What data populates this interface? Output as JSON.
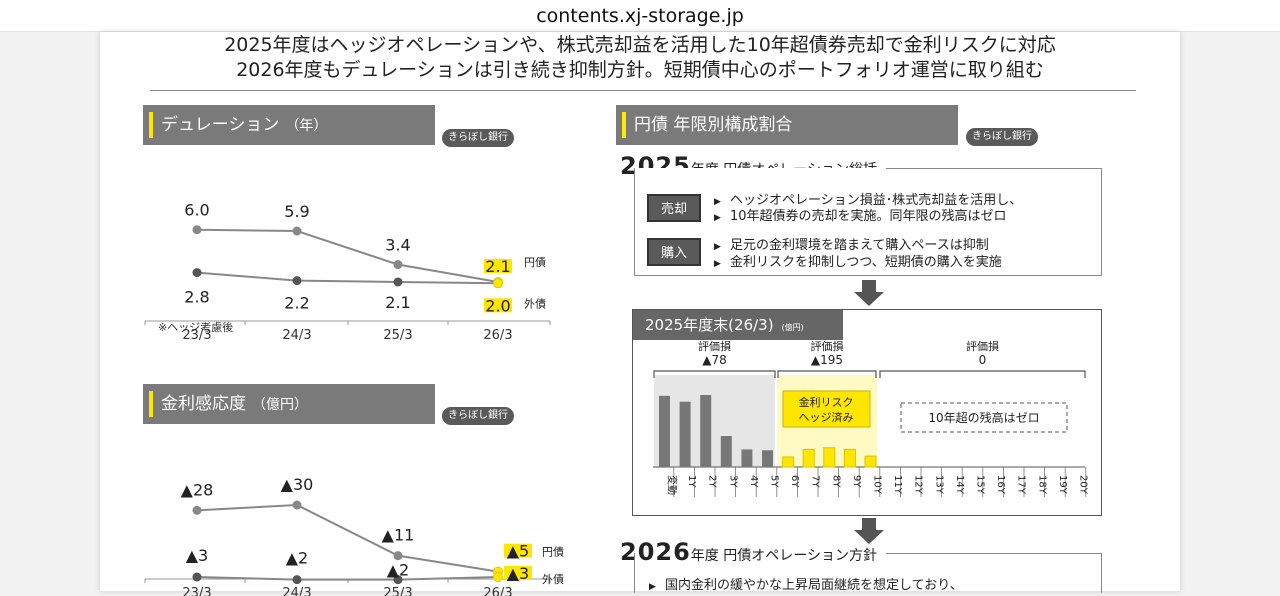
{
  "browser": {
    "url": "contents.xj-storage.jp"
  },
  "headline": {
    "line1": "2025年度はヘッジオペレーションや、株式売却益を活用した10年超債券売却で金利リスクに対応",
    "line2": "2026年度もデュレーションは引き続き抑制方針。短期債中心のポートフォリオ運営に取り組む"
  },
  "duration": {
    "title": "デュレーション",
    "unit": "（年）",
    "badge": "きらぼし銀行",
    "note": "※ヘッジ考慮後",
    "chart_data": {
      "type": "line",
      "categories": [
        "23/3",
        "24/3",
        "25/3",
        "26/3"
      ],
      "series": [
        {
          "name": "円債",
          "values": [
            6.0,
            5.9,
            3.4,
            2.1
          ],
          "labels": [
            "6.0",
            "5.9",
            "3.4",
            "2.1"
          ]
        },
        {
          "name": "外債",
          "values": [
            2.8,
            2.2,
            2.1,
            2.0
          ],
          "labels": [
            "2.8",
            "2.2",
            "2.1",
            "2.0"
          ]
        }
      ],
      "ylim": [
        1.5,
        6.5
      ]
    }
  },
  "sensitivity": {
    "title": "金利感応度",
    "unit": "（億円）",
    "badge": "きらぼし銀行",
    "chart_data": {
      "type": "line",
      "categories": [
        "23/3",
        "24/3",
        "25/3",
        "26/3"
      ],
      "series": [
        {
          "name": "円債",
          "values": [
            28,
            30,
            11,
            5
          ],
          "labels": [
            "▲28",
            "▲30",
            "▲11",
            "▲5"
          ]
        },
        {
          "name": "外債",
          "values": [
            3,
            2,
            2,
            3
          ],
          "labels": [
            "▲3",
            "▲2",
            "▲2",
            "▲3"
          ]
        }
      ],
      "ylim": [
        0,
        33
      ]
    }
  },
  "composition": {
    "title": "円債 年限別構成割合",
    "badge": "きらぼし銀行",
    "fy2025": {
      "year": "2025",
      "suffix": "年度 円債オペレーション総括",
      "sell_tag": "売却",
      "sell_lines": [
        "ヘッジオペレーション損益･株式売却益を活用し、",
        "10年超債券の売却を実施。同年限の残高はゼロ"
      ],
      "buy_tag": "購入",
      "buy_lines": [
        "足元の金利環境を踏まえて購入ペースは抑制",
        "金利リスクを抑制しつつ、短期債の購入を実施"
      ]
    },
    "end_box": {
      "title": "2025年度末(26/3)",
      "unit": "(億円)",
      "groups": [
        {
          "label": "評価損",
          "value": "▲78"
        },
        {
          "label": "評価損",
          "value": "▲195"
        },
        {
          "label": "評価損",
          "value": "0"
        }
      ],
      "hedge_label": [
        "金利リスク",
        "ヘッジ済み"
      ],
      "zero_label": "10年超の残高はゼロ",
      "colors": {
        "grey": "#777777",
        "yellow": "#ffe600",
        "yellow_bg": "#fff9c4",
        "grey_bg": "#e6e6e6"
      },
      "chart_data": {
        "type": "bar",
        "categories": [
          "変動",
          "1Y",
          "2Y",
          "3Y",
          "4Y",
          "5Y",
          "6Y",
          "7Y",
          "8Y",
          "9Y",
          "10Y",
          "11Y",
          "12Y",
          "13Y",
          "14Y",
          "15Y",
          "16Y",
          "17Y",
          "18Y",
          "19Y",
          "20Y"
        ],
        "values": [
          85,
          78,
          86,
          37,
          21,
          20,
          12,
          21,
          23,
          21,
          13,
          0,
          0,
          0,
          0,
          0,
          0,
          0,
          0,
          0,
          0
        ]
      }
    },
    "fy2026": {
      "year": "2026",
      "suffix": "年度 円債オペレーション方針",
      "lines": [
        "国内金利の緩やかな上昇局面継続を想定しており、"
      ]
    }
  }
}
